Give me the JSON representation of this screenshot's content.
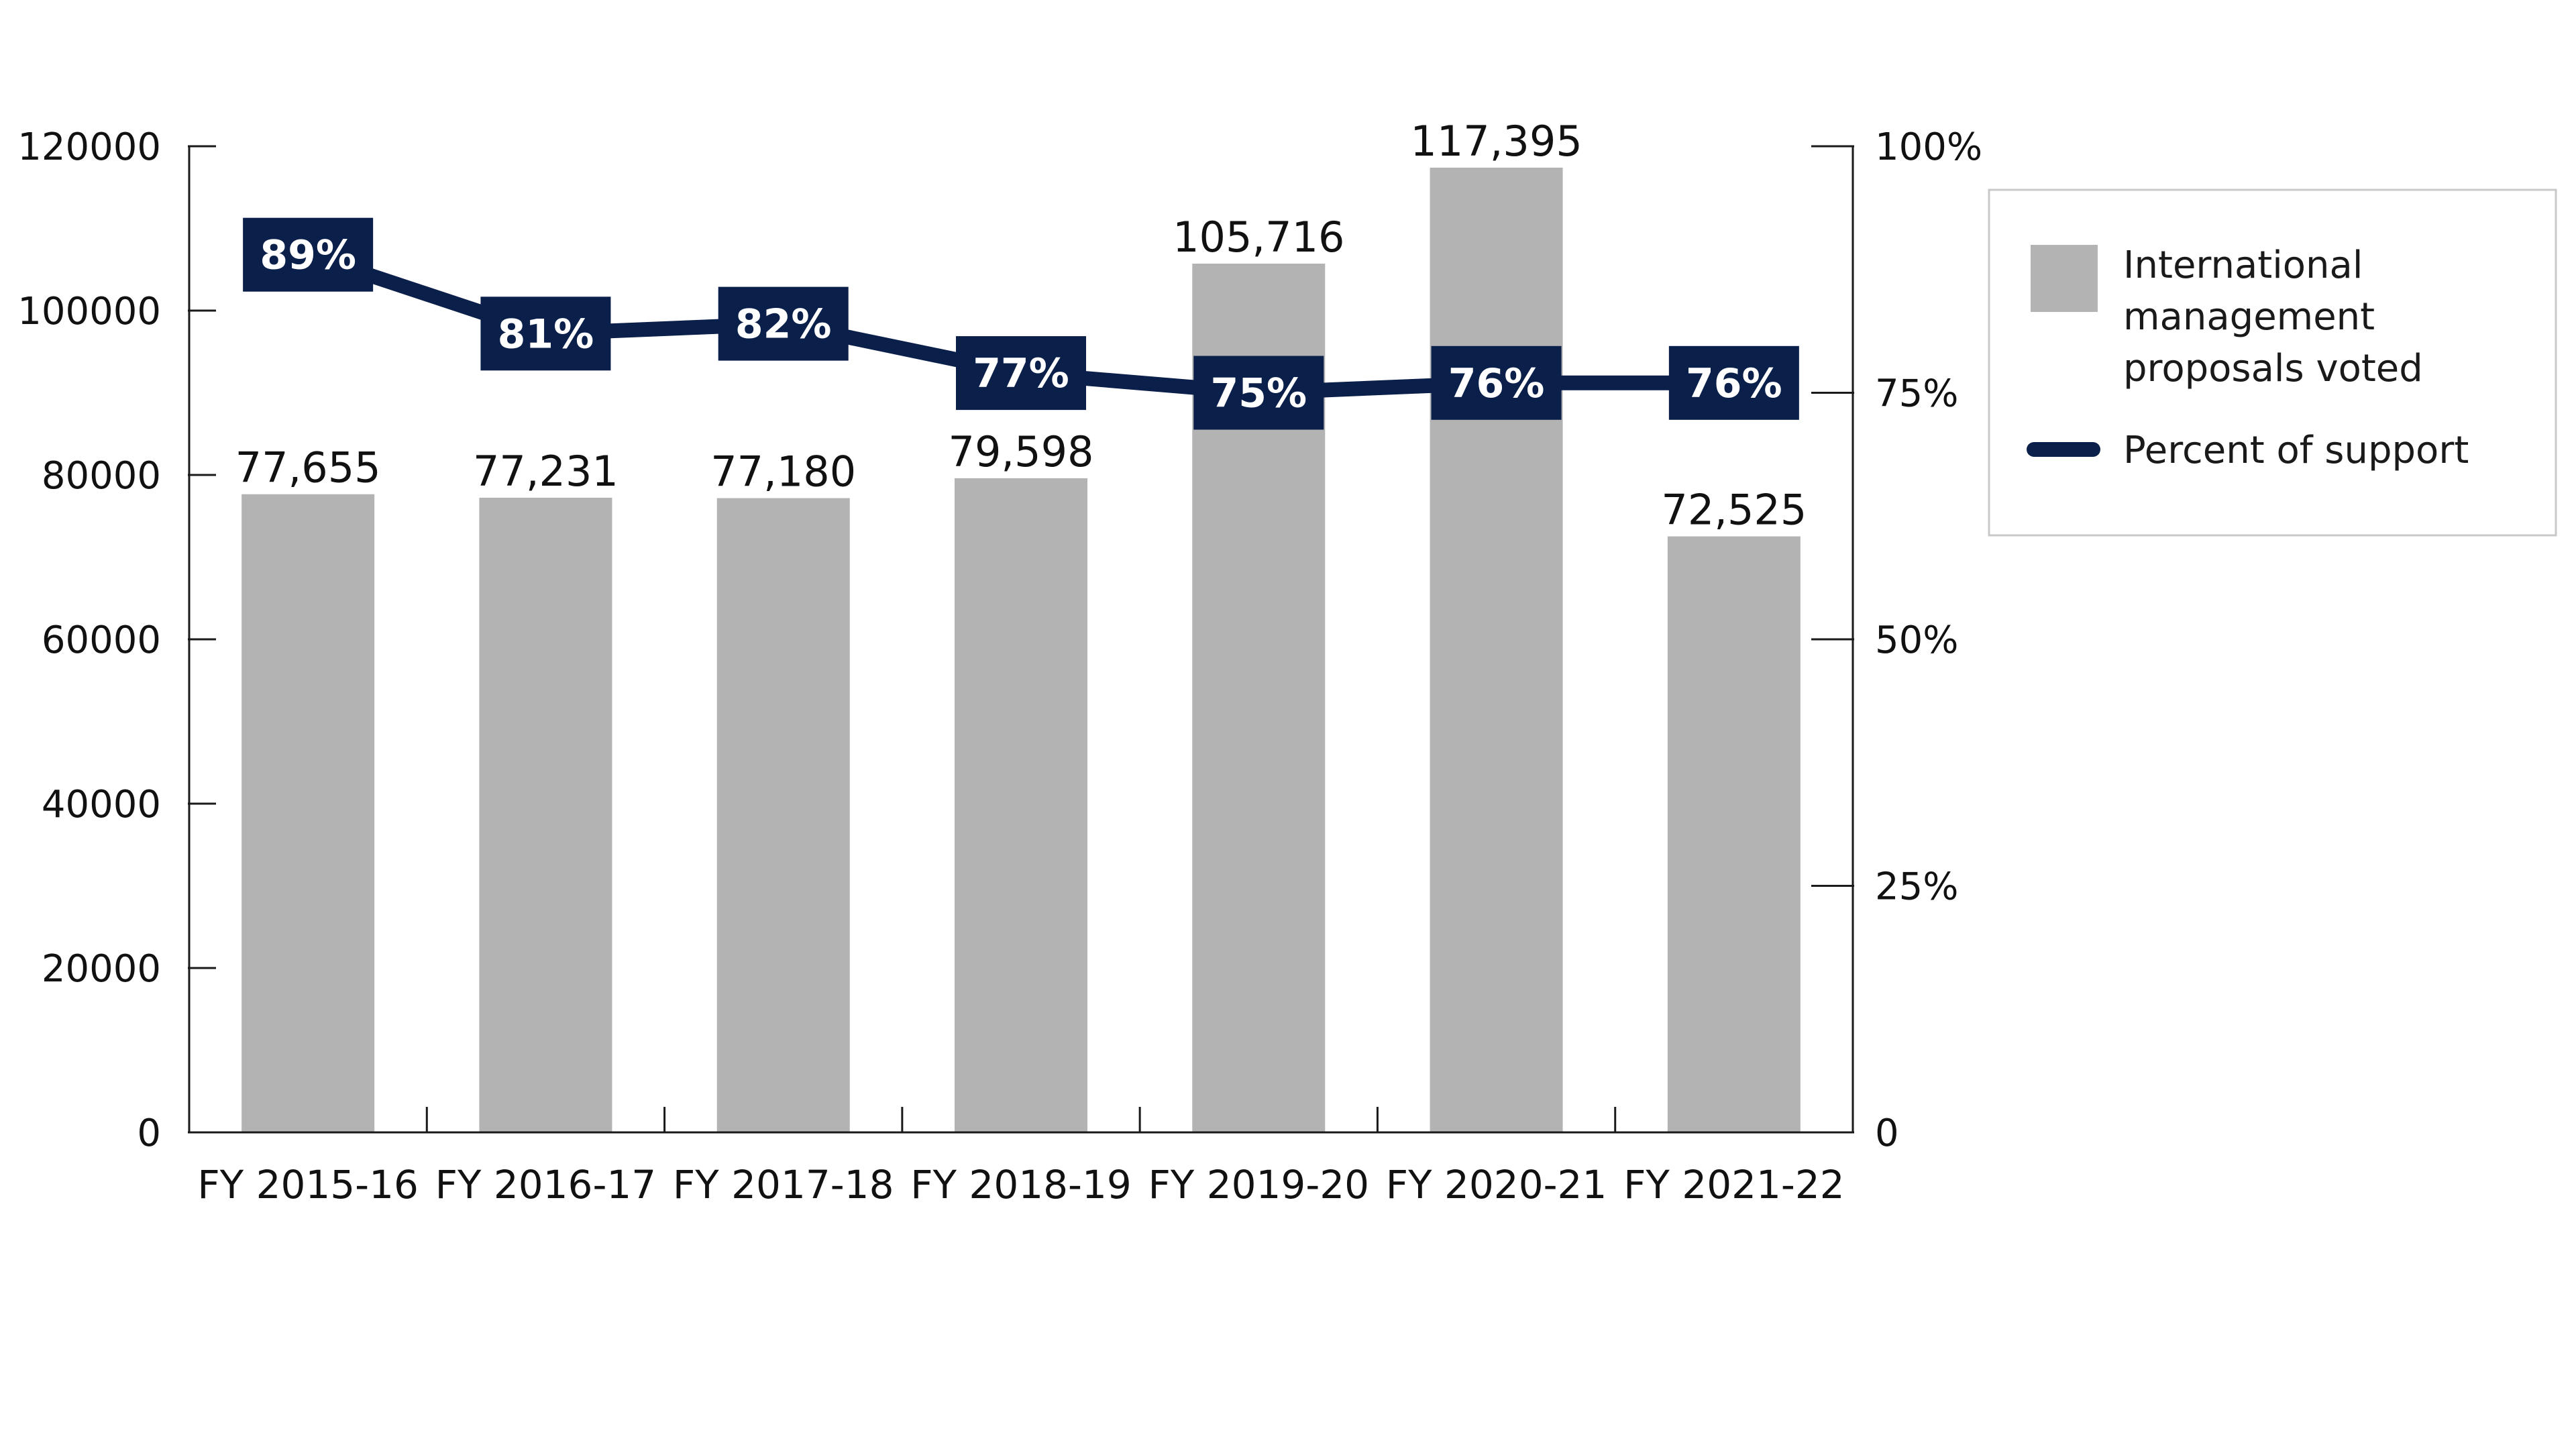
{
  "chart_data": {
    "type": "bar",
    "categories": [
      "FY 2015-16",
      "FY 2016-17",
      "FY 2017-18",
      "FY 2018-19",
      "FY 2019-20",
      "FY 2020-21",
      "FY 2021-22"
    ],
    "series": [
      {
        "name": "International management proposals voted",
        "chart_type": "bar",
        "axis": "left",
        "color": "#b3b3b3",
        "values": [
          77655,
          77231,
          77180,
          79598,
          105716,
          117395,
          72525
        ],
        "value_labels": [
          "77,655",
          "77,231",
          "77,180",
          "79,598",
          "105,716",
          "117,395",
          "72,525"
        ]
      },
      {
        "name": "Percent of support",
        "chart_type": "line",
        "axis": "right",
        "color": "#0b1f4b",
        "values": [
          89,
          81,
          82,
          77,
          75,
          76,
          76
        ],
        "value_labels": [
          "89%",
          "81%",
          "82%",
          "77%",
          "75%",
          "76%",
          "76%"
        ]
      }
    ],
    "y_left": {
      "ylim": [
        0,
        120000
      ],
      "ticks": [
        0,
        20000,
        40000,
        60000,
        80000,
        100000,
        120000
      ],
      "tick_labels": [
        "0",
        "20000",
        "40000",
        "60000",
        "80000",
        "100000",
        "120000"
      ]
    },
    "y_right": {
      "ylim": [
        0,
        100
      ],
      "ticks": [
        0,
        25,
        50,
        75,
        100
      ],
      "tick_labels": [
        "0",
        "25%",
        "50%",
        "75%",
        "100%"
      ]
    },
    "legend": {
      "position": "right",
      "entries": [
        {
          "lines": [
            "International",
            "management",
            "proposals voted"
          ],
          "marker": "square"
        },
        {
          "lines": [
            "Percent of support"
          ],
          "marker": "line"
        }
      ]
    },
    "title": "",
    "xlabel": "",
    "ylabel": "",
    "grid": false
  }
}
